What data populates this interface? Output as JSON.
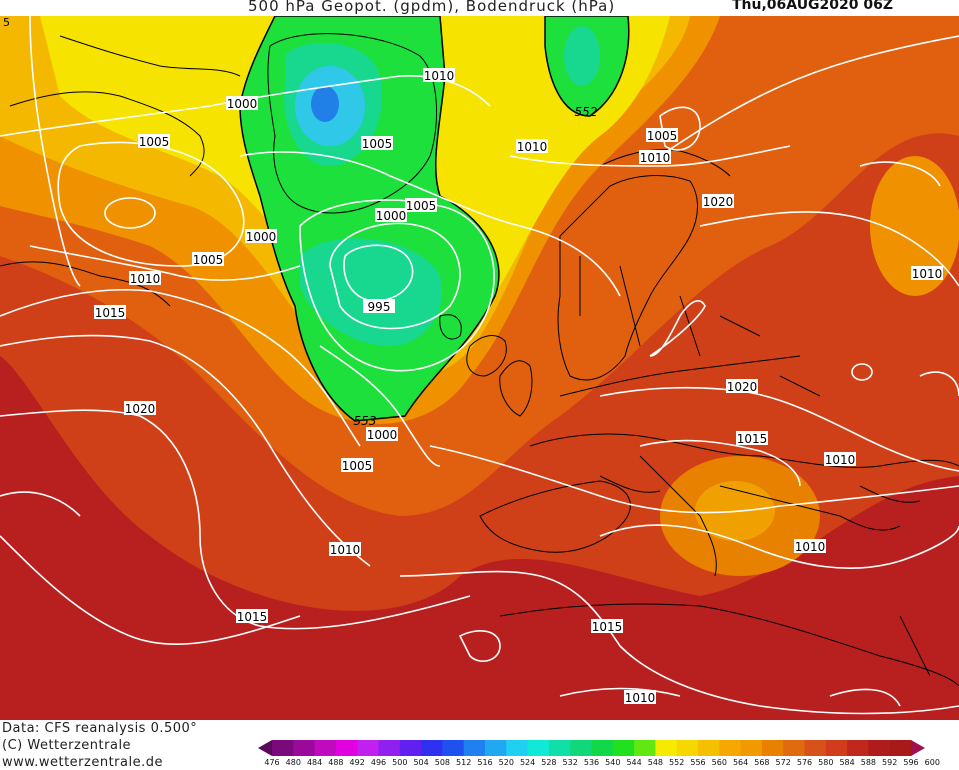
{
  "header": {
    "title": "500 hPa Geopot. (gpdm), Bodendruck (hPa)",
    "date": "Thu,06AUG2020 06Z",
    "corner_mark": "5"
  },
  "map": {
    "isobar_labels": [
      "1000",
      "1005",
      "1010",
      "1005",
      "1010",
      "1005",
      "1010",
      "1000",
      "1005",
      "1020",
      "1005",
      "1010",
      "1000",
      "995",
      "1010",
      "1015",
      "1020",
      "1000",
      "1005",
      "1010",
      "1015",
      "1020",
      "1015",
      "1010",
      "1010",
      "1010",
      "1015",
      "1015",
      "1010",
      "1010"
    ],
    "height_labels": [
      "552",
      "553"
    ],
    "colors": {
      "deep_low": "#1e7bdc",
      "low": "#37c8e8",
      "cyan_green": "#18d29a",
      "green": "#1edc3c",
      "yellow": "#f6ea00",
      "gold": "#f4c000",
      "orange": "#f09a00",
      "orange_red": "#e06a10",
      "red_orange": "#d8501a",
      "red": "#c0281e",
      "dark_red": "#a81a1a",
      "isobar": "#ffffff",
      "coast": "#000000"
    }
  },
  "footer": {
    "data_source": "Data: CFS reanalysis 0.500°",
    "copyright": "(C) Wetterzentrale",
    "url": "www.wetterzentrale.de"
  },
  "legend": {
    "ticks": [
      "476",
      "480",
      "484",
      "488",
      "492",
      "496",
      "500",
      "504",
      "508",
      "512",
      "516",
      "520",
      "524",
      "528",
      "532",
      "536",
      "540",
      "544",
      "548",
      "552",
      "556",
      "560",
      "564",
      "568",
      "572",
      "576",
      "580",
      "584",
      "588",
      "592",
      "596",
      "600"
    ],
    "colors": [
      "#5a0a5a",
      "#7a0a7a",
      "#9a0a9a",
      "#c00ac0",
      "#e000e0",
      "#c020f0",
      "#9020f0",
      "#6020f0",
      "#3030f0",
      "#2050f0",
      "#2080f0",
      "#20a8f0",
      "#20d0f0",
      "#10e8d8",
      "#10e0a8",
      "#10d878",
      "#10d848",
      "#20e020",
      "#60e810",
      "#f6ea00",
      "#f6d800",
      "#f4c000",
      "#f4a800",
      "#f09a00",
      "#e88000",
      "#e06a10",
      "#d8501a",
      "#d03c1c",
      "#c0281e",
      "#b01c1c",
      "#a81a1a",
      "#a01050"
    ]
  }
}
